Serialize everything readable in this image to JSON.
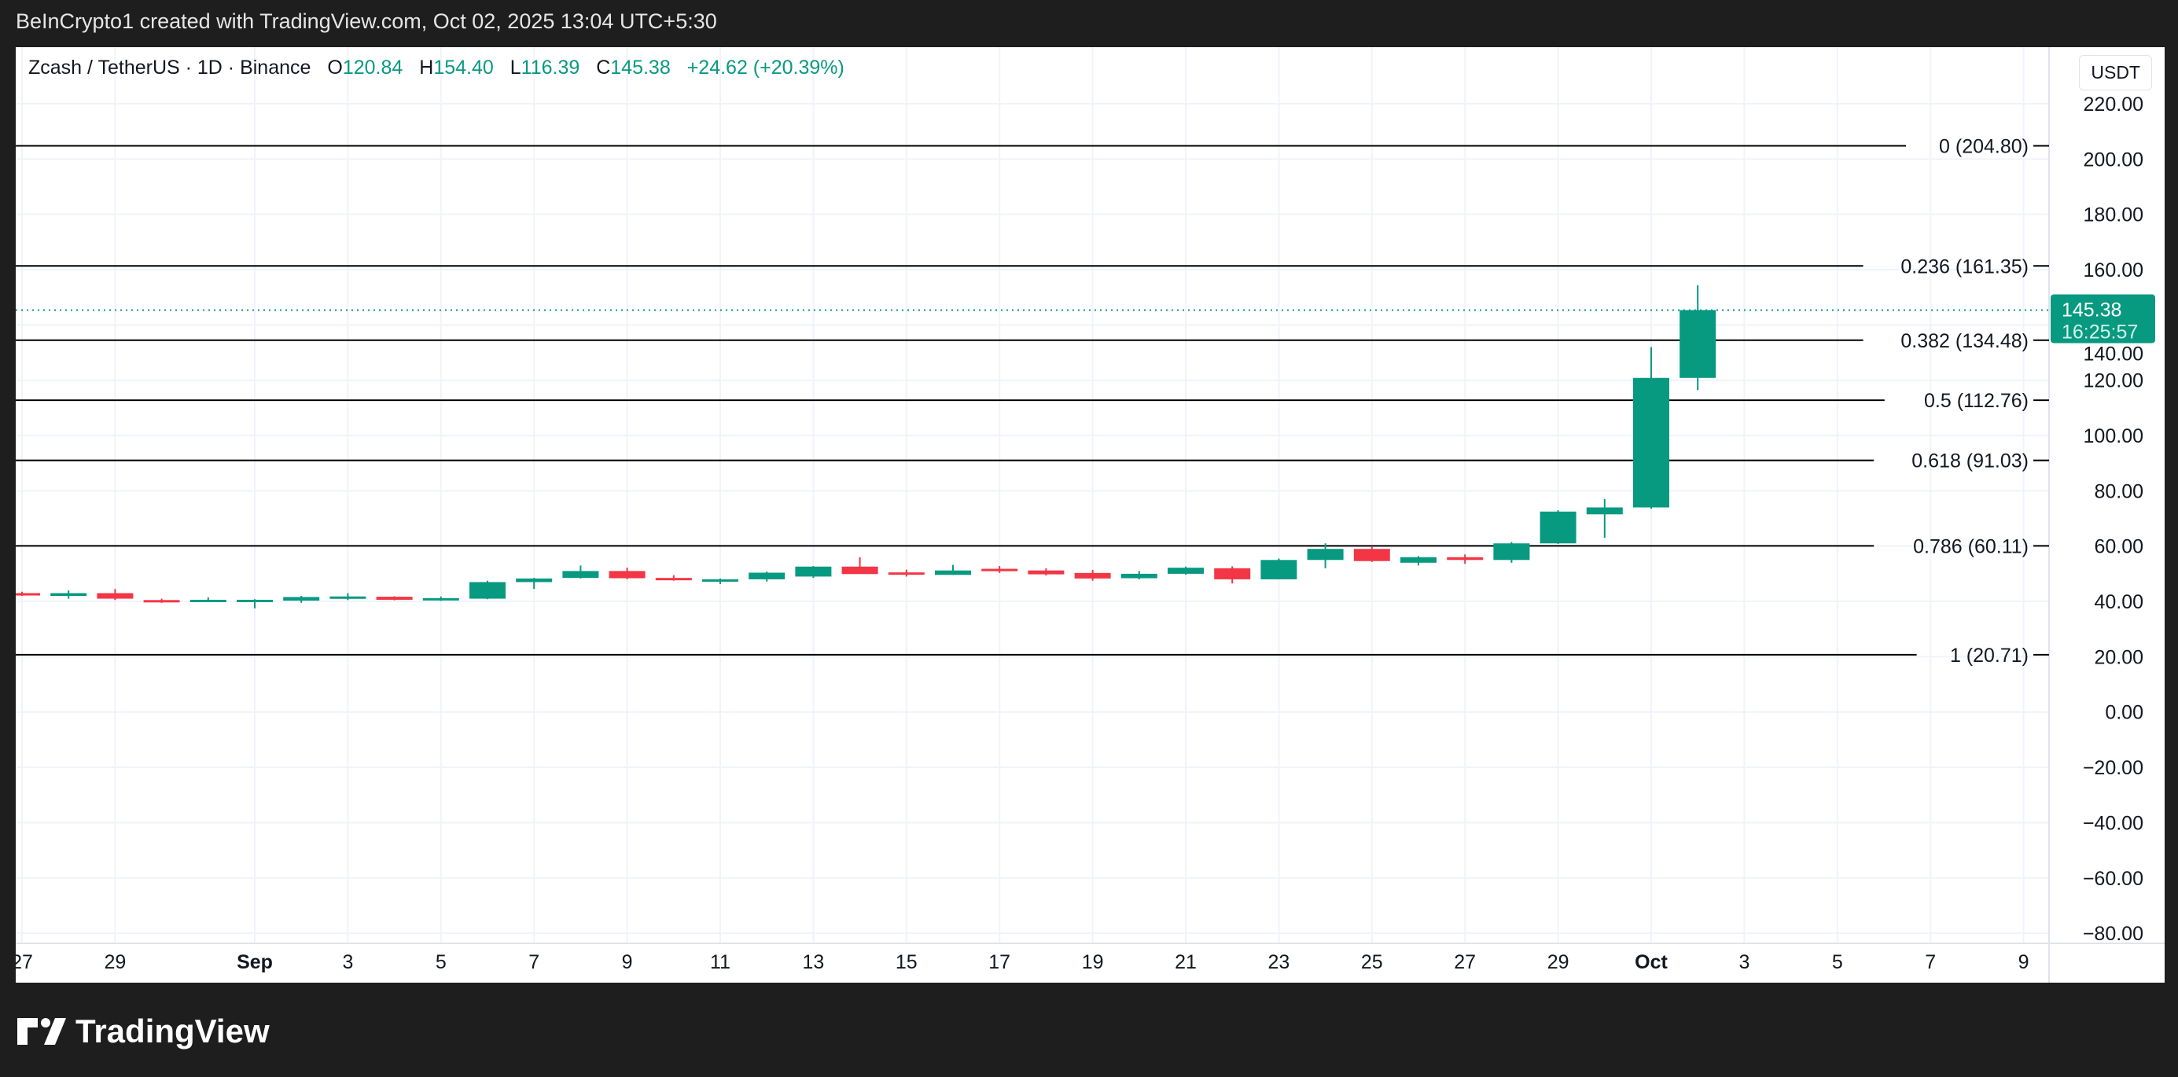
{
  "header": {
    "caption": "BeInCrypto1 created with TradingView.com, Oct 02, 2025 13:04 UTC+5:30"
  },
  "legend": {
    "symbol": "Zcash / TetherUS · 1D · Binance",
    "o_label": "O",
    "o": "120.84",
    "h_label": "H",
    "h": "154.40",
    "l_label": "L",
    "l": "116.39",
    "c_label": "C",
    "c": "145.38",
    "change": "+24.62 (+20.39%)"
  },
  "currency": "USDT",
  "brand": "TradingView",
  "colors": {
    "up": "#089981",
    "down": "#f23645",
    "fib": "#000000",
    "grid": "#f0f3fa"
  },
  "chart_data": {
    "type": "candlestick",
    "ylim": [
      -80,
      220
    ],
    "y_ticks": [
      "220.00",
      "200.00",
      "180.00",
      "160.00",
      "140.00",
      "120.00",
      "100.00",
      "80.00",
      "60.00",
      "40.00",
      "20.00",
      "0.00",
      "−20.00",
      "−40.00",
      "−60.00",
      "−80.00"
    ],
    "x_ticks": [
      {
        "label": "27",
        "day": 0
      },
      {
        "label": "29",
        "day": 2
      },
      {
        "label": "Sep",
        "day": 5,
        "bold": true
      },
      {
        "label": "3",
        "day": 7
      },
      {
        "label": "5",
        "day": 9
      },
      {
        "label": "7",
        "day": 11
      },
      {
        "label": "9",
        "day": 13
      },
      {
        "label": "11",
        "day": 15
      },
      {
        "label": "13",
        "day": 17
      },
      {
        "label": "15",
        "day": 19
      },
      {
        "label": "17",
        "day": 21
      },
      {
        "label": "19",
        "day": 23
      },
      {
        "label": "21",
        "day": 25
      },
      {
        "label": "23",
        "day": 27
      },
      {
        "label": "25",
        "day": 29
      },
      {
        "label": "27",
        "day": 31
      },
      {
        "label": "29",
        "day": 33
      },
      {
        "label": "Oct",
        "day": 35,
        "bold": true
      },
      {
        "label": "3",
        "day": 37
      },
      {
        "label": "5",
        "day": 39
      },
      {
        "label": "7",
        "day": 41
      },
      {
        "label": "9",
        "day": 43
      }
    ],
    "candles": [
      [
        "Aug 27",
        43,
        43.5,
        42,
        42.3
      ],
      [
        "Aug 28",
        42,
        44,
        41,
        43
      ],
      [
        "Aug 29",
        43,
        44.5,
        40.5,
        41
      ],
      [
        "Aug 30",
        40.5,
        41,
        39.5,
        40
      ],
      [
        "Aug 31",
        40,
        41.5,
        39.8,
        40.6
      ],
      [
        "Sep 1",
        40,
        40.8,
        37.5,
        40.6
      ],
      [
        "Sep 2",
        40.3,
        42,
        39.5,
        41.6
      ],
      [
        "Sep 3",
        41,
        43,
        40.5,
        41.8
      ],
      [
        "Sep 4",
        41.7,
        41.9,
        40.4,
        40.6
      ],
      [
        "Sep 5",
        40.6,
        41.8,
        40.2,
        41.2
      ],
      [
        "Sep 6",
        41,
        47.5,
        40.8,
        47
      ],
      [
        "Sep 7",
        47,
        48.5,
        44.5,
        48.3
      ],
      [
        "Sep 8",
        48.5,
        53,
        48.3,
        51
      ],
      [
        "Sep 9",
        51,
        52.2,
        48,
        48.4
      ],
      [
        "Sep 10",
        48.5,
        49.5,
        47.5,
        48
      ],
      [
        "Sep 11",
        47.4,
        48.3,
        46.3,
        48
      ],
      [
        "Sep 12",
        48,
        50.8,
        47.2,
        50.4
      ],
      [
        "Sep 13",
        49,
        52.8,
        48.5,
        52.6
      ],
      [
        "Sep 14",
        52.6,
        56,
        50,
        49.9
      ],
      [
        "Sep 15",
        50.5,
        51.5,
        49,
        49.7
      ],
      [
        "Sep 16",
        49.6,
        53.2,
        49.6,
        51.2
      ],
      [
        "Sep 17",
        51.8,
        52.8,
        50.3,
        51
      ],
      [
        "Sep 18",
        51.2,
        52,
        49.4,
        49.8
      ],
      [
        "Sep 19",
        50.3,
        51.4,
        47.5,
        48.3
      ],
      [
        "Sep 20",
        48.4,
        51,
        48,
        50
      ],
      [
        "Sep 21",
        50,
        52.6,
        49.7,
        52.2
      ],
      [
        "Sep 22",
        52,
        52.7,
        46.5,
        48
      ],
      [
        "Sep 23",
        48,
        55.5,
        48,
        55
      ],
      [
        "Sep 24",
        55,
        61,
        52,
        59
      ],
      [
        "Sep 25",
        59,
        60,
        54.3,
        54.6
      ],
      [
        "Sep 26",
        54,
        56.4,
        53,
        56
      ],
      [
        "Sep 27",
        56,
        57,
        53.6,
        55
      ],
      [
        "Sep 28",
        55,
        61.5,
        54,
        61
      ],
      [
        "Sep 29",
        61,
        73,
        60.8,
        72.5
      ],
      [
        "Sep 30",
        71.5,
        77,
        63,
        74
      ],
      [
        "Oct 1",
        74,
        132,
        73.5,
        120.84
      ],
      [
        "Oct 2",
        120.84,
        154.4,
        116.39,
        145.38
      ]
    ],
    "fib_levels": [
      {
        "label": "0 (204.80)",
        "value": 204.8
      },
      {
        "label": "0.236 (161.35)",
        "value": 161.35
      },
      {
        "label": "0.382 (134.48)",
        "value": 134.48
      },
      {
        "label": "0.5 (112.76)",
        "value": 112.76
      },
      {
        "label": "0.618 (91.03)",
        "value": 91.03
      },
      {
        "label": "0.786 (60.11)",
        "value": 60.11
      },
      {
        "label": "1 (20.71)",
        "value": 20.71
      }
    ],
    "last_price": {
      "value": 145.38,
      "label": "145.38",
      "countdown": "16:25:57"
    }
  }
}
